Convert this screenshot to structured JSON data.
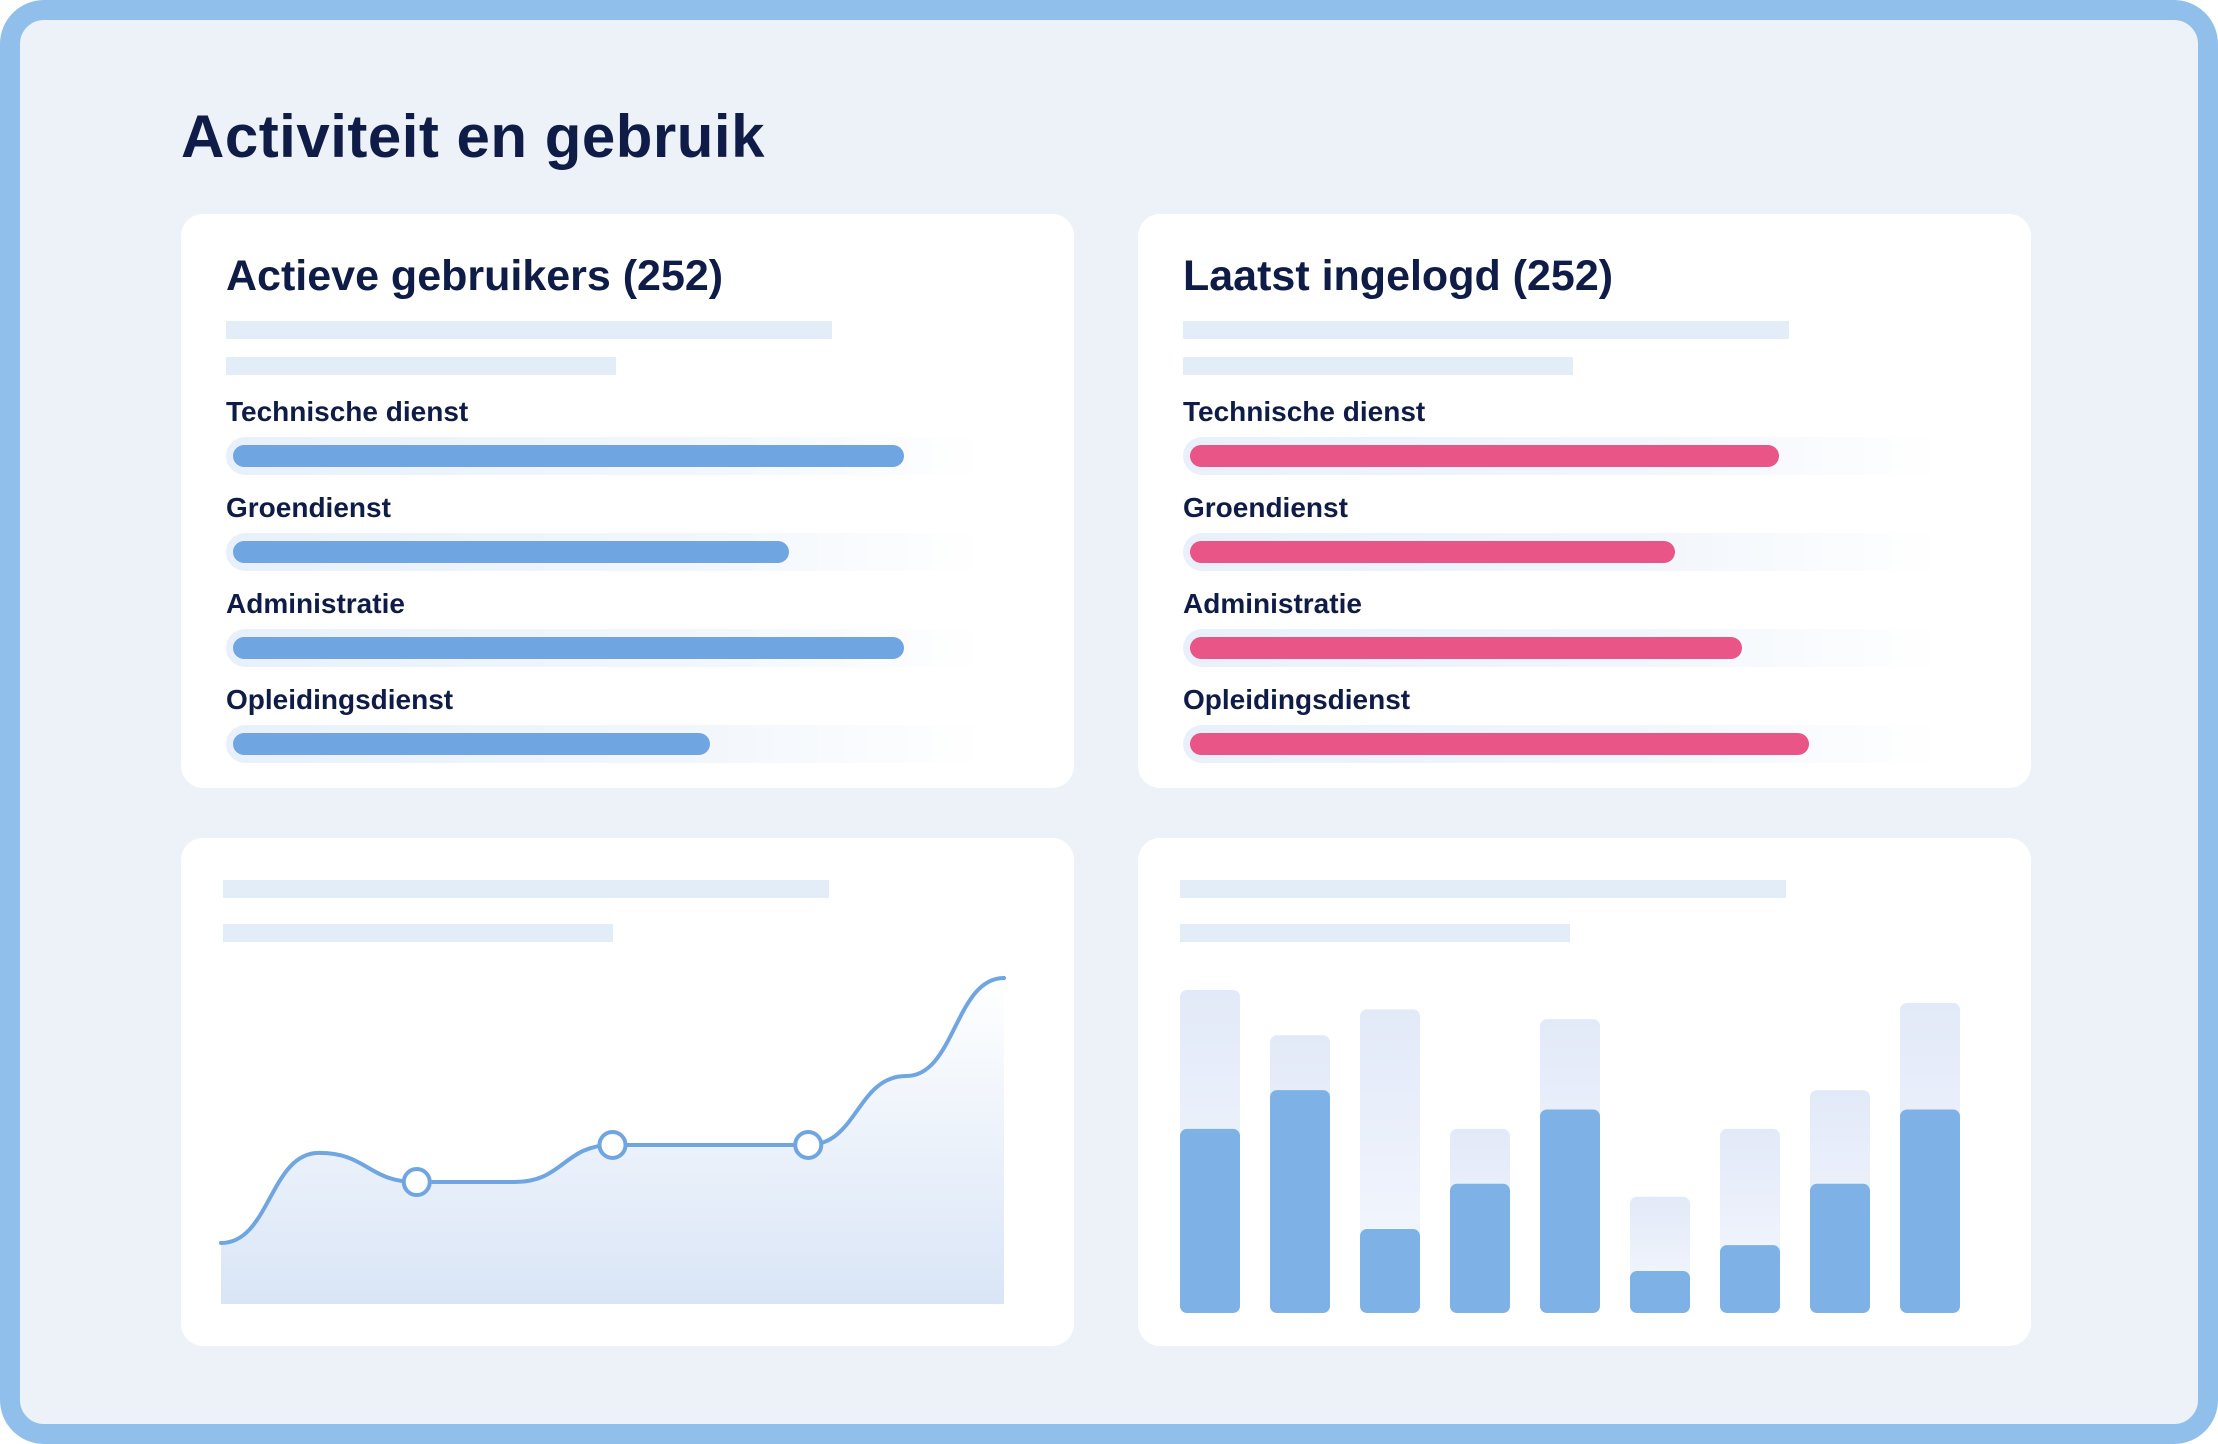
{
  "page": {
    "title": "Activiteit en gebruik"
  },
  "colors": {
    "frame": "#91bfeb",
    "background": "#edf1f8",
    "blue_bar": "#6fa6e2",
    "pink_bar": "#ea5587",
    "text": "#0e1c47"
  },
  "cards": {
    "active_users": {
      "title": "Actieve gebruikers (252)",
      "rows": [
        {
          "label": "Technische dienst",
          "fraction": 0.9
        },
        {
          "label": "Groendienst",
          "fraction": 0.745
        },
        {
          "label": "Administratie",
          "fraction": 0.9
        },
        {
          "label": "Opleidingsdienst",
          "fraction": 0.64
        }
      ]
    },
    "last_logged_in": {
      "title": "Laatst ingelogd (252)",
      "rows": [
        {
          "label": "Technische dienst",
          "fraction": 0.79
        },
        {
          "label": "Groendienst",
          "fraction": 0.65
        },
        {
          "label": "Administratie",
          "fraction": 0.74
        },
        {
          "label": "Opleidingsdienst",
          "fraction": 0.83
        }
      ]
    }
  },
  "chart_data": [
    {
      "type": "bar",
      "title": "Actieve gebruikers (252)",
      "categories": [
        "Technische dienst",
        "Groendienst",
        "Administratie",
        "Opleidingsdienst"
      ],
      "values": [
        0.9,
        0.745,
        0.9,
        0.64
      ],
      "unit": "fraction of bar"
    },
    {
      "type": "bar",
      "title": "Laatst ingelogd (252)",
      "categories": [
        "Technische dienst",
        "Groendienst",
        "Administratie",
        "Opleidingsdienst"
      ],
      "values": [
        0.79,
        0.65,
        0.74,
        0.83
      ],
      "unit": "fraction of bar"
    },
    {
      "type": "line",
      "x": [
        0,
        1,
        2,
        3,
        4,
        5,
        6,
        7,
        8
      ],
      "values": [
        0,
        0.34,
        0.23,
        0.23,
        0.37,
        0.37,
        0.37,
        0.63,
        1
      ],
      "marker_indices": [
        2,
        4,
        6
      ],
      "ylim": [
        0,
        1
      ]
    },
    {
      "type": "bar",
      "stacked_background": true,
      "series": [
        {
          "values": [
            0.57,
            0.69,
            0.26,
            0.4,
            0.63,
            0.13,
            0.21,
            0.4,
            0.63
          ]
        },
        {
          "values": [
            1.0,
            0.86,
            0.94,
            0.57,
            0.91,
            0.36,
            0.57,
            0.69,
            0.96
          ]
        }
      ],
      "ylim": [
        0,
        1
      ]
    }
  ]
}
